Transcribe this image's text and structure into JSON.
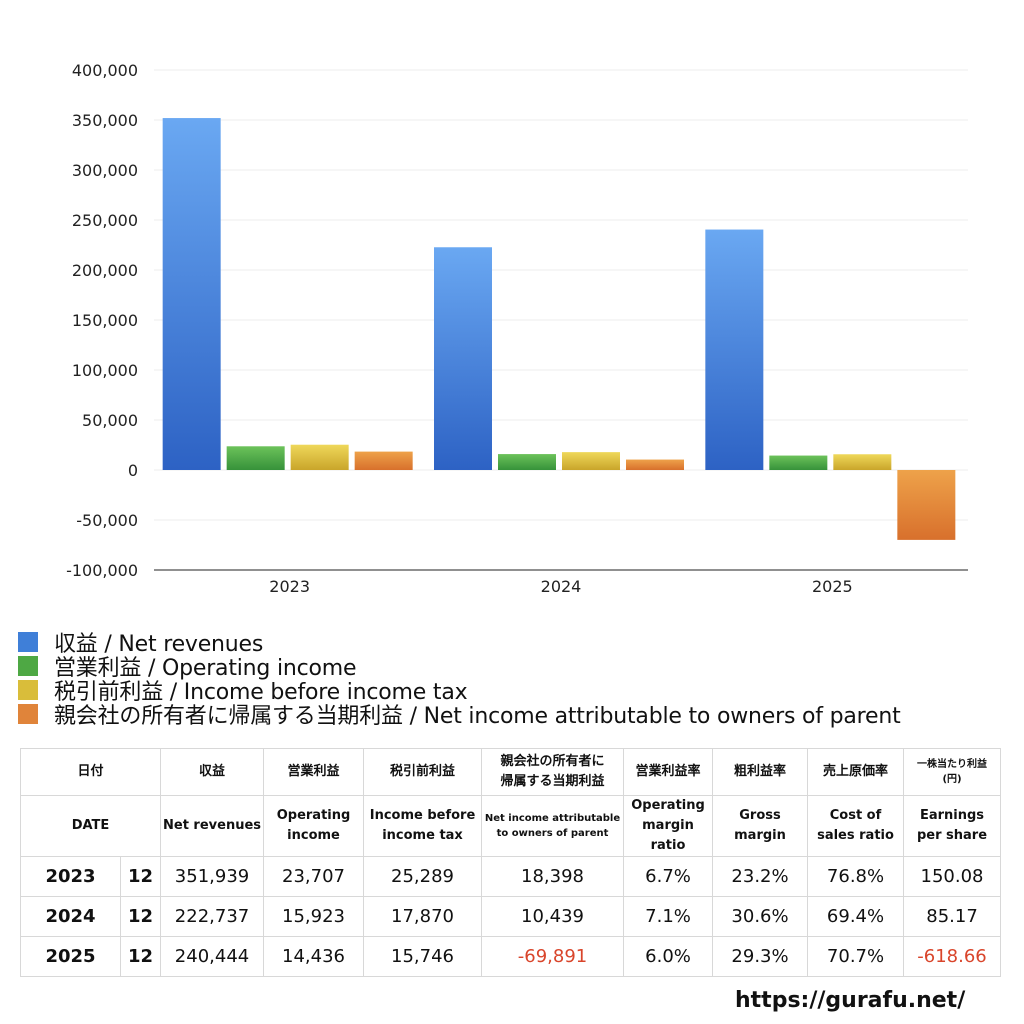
{
  "chart_data": {
    "type": "bar",
    "categories": [
      "2023",
      "2024",
      "2025"
    ],
    "series": [
      {
        "name": "収益 / Net revenues",
        "values": [
          351939,
          222737,
          240444
        ],
        "color_top": "#6aa8f2",
        "color_bottom": "#2d62c4"
      },
      {
        "name": "営業利益 / Operating income",
        "values": [
          23707,
          15923,
          14436
        ],
        "color_top": "#6cc25a",
        "color_bottom": "#36923a"
      },
      {
        "name": "税引前利益 / Income before income tax",
        "values": [
          25289,
          17870,
          15746
        ],
        "color_top": "#efd85a",
        "color_bottom": "#c9a52a"
      },
      {
        "name": "親会社の所有者に帰属する当期利益 / Net income attributable to owners of parent",
        "values": [
          18398,
          10439,
          -69891
        ],
        "color_top": "#eea24a",
        "color_bottom": "#d8702c"
      }
    ],
    "ylim": [
      -100000,
      400000
    ],
    "yticks": [
      400000,
      350000,
      300000,
      250000,
      200000,
      150000,
      100000,
      50000,
      0,
      -50000,
      -100000
    ],
    "ytick_labels": [
      "400,000",
      "350,000",
      "300,000",
      "250,000",
      "200,000",
      "150,000",
      "100,000",
      "50,000",
      "0",
      "-50,000",
      "-100,000"
    ],
    "grid": true,
    "legend_position": "bottom-left",
    "title": "",
    "xlabel": "",
    "ylabel": ""
  },
  "legend": [
    {
      "label": "収益 / Net revenues",
      "color": "#3f7fd8"
    },
    {
      "label": "営業利益 / Operating income",
      "color": "#4ea844"
    },
    {
      "label": "税引前利益 / Income before income tax",
      "color": "#d9bd3a"
    },
    {
      "label": "親会社の所有者に帰属する当期利益 / Net income attributable to owners of parent",
      "color": "#e0843a"
    }
  ],
  "table": {
    "header_jp": {
      "date": "日付",
      "revenue": "収益",
      "operating": "営業利益",
      "pretax": "税引前利益",
      "netincome_l1": "親会社の所有者に",
      "netincome_l2": "帰属する当期利益",
      "op_margin": "営業利益率",
      "gross_margin": "粗利益率",
      "cost_ratio": "売上原価率",
      "eps_l1": "一株当たり利益",
      "eps_l2": "(円)"
    },
    "header_en": {
      "date": "DATE",
      "revenue": "Net revenues",
      "operating_l1": "Operating",
      "operating_l2": "income",
      "pretax_l1": "Income before",
      "pretax_l2": "income tax",
      "netincome_l1": "Net income attributable",
      "netincome_l2": "to owners of parent",
      "op_margin_l1": "Operating",
      "op_margin_l2": "margin",
      "op_margin_l3": "ratio",
      "gross_l1": "Gross",
      "gross_l2": "margin",
      "cost_l1": "Cost of",
      "cost_l2": "sales ratio",
      "eps_l1": "Earnings",
      "eps_l2": "per share"
    },
    "rows": [
      {
        "year": "2023",
        "month": "12",
        "revenue": "351,939",
        "operating": "23,707",
        "pretax": "25,289",
        "netincome": "18,398",
        "op_margin": "6.7%",
        "gross": "23.2%",
        "cost": "76.8%",
        "eps": "150.08"
      },
      {
        "year": "2024",
        "month": "12",
        "revenue": "222,737",
        "operating": "15,923",
        "pretax": "17,870",
        "netincome": "10,439",
        "op_margin": "7.1%",
        "gross": "30.6%",
        "cost": "69.4%",
        "eps": "85.17"
      },
      {
        "year": "2025",
        "month": "12",
        "revenue": "240,444",
        "operating": "14,436",
        "pretax": "15,746",
        "netincome": "-69,891",
        "op_margin": "6.0%",
        "gross": "29.3%",
        "cost": "70.7%",
        "eps": "-618.66"
      }
    ],
    "negative_color": "#d9452b"
  },
  "footer": {
    "url": "https://gurafu.net/"
  }
}
